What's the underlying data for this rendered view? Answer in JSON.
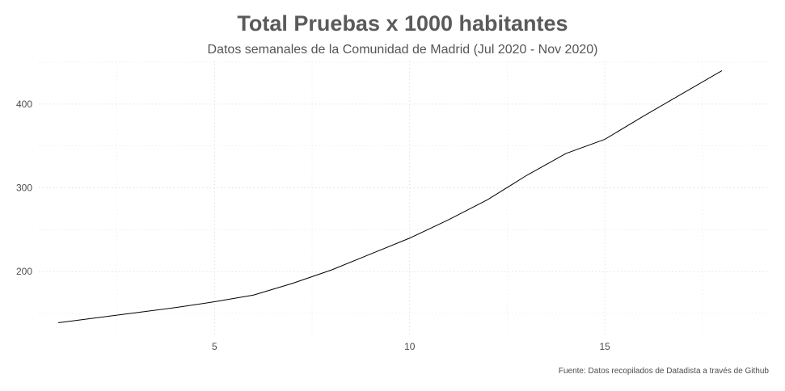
{
  "chart_data": {
    "type": "line",
    "title": "Total Pruebas x 1000 habitantes",
    "subtitle": "Datos semanales de la Comunidad de Madrid (Jul 2020 - Nov 2020)",
    "caption": "Fuente: Datos recopilados de Datadista a través de Github",
    "xlabel": "",
    "ylabel": "",
    "x": [
      1,
      2,
      3,
      4,
      5,
      6,
      7,
      8,
      9,
      10,
      11,
      12,
      13,
      14,
      15,
      16,
      17,
      18
    ],
    "series": [
      {
        "values": [
          139,
          145,
          151,
          157,
          164,
          172,
          186,
          202,
          221,
          240,
          262,
          286,
          315,
          341,
          358,
          386,
          413,
          440
        ]
      }
    ],
    "xlim": [
      0.5,
      19.2
    ],
    "ylim": [
      124,
      452
    ],
    "x_ticks": [
      5,
      10,
      15
    ],
    "y_ticks": [
      200,
      300,
      400
    ],
    "grid": true,
    "legend": "none",
    "colors": {
      "line": "#000000",
      "grid": "#d9d9d9",
      "title": "#5a5a5a",
      "text": "#4d4d4d"
    }
  }
}
